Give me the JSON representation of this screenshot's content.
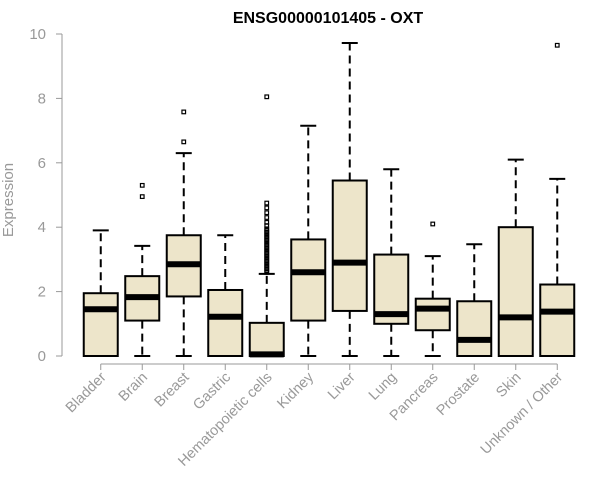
{
  "chart_data": {
    "type": "box",
    "title": "ENSG00000101405 - OXT",
    "xlabel": "",
    "ylabel": "Expression",
    "ylim": [
      0,
      10
    ],
    "yticks": [
      0,
      2,
      4,
      6,
      8,
      10
    ],
    "grid": false,
    "colors": {
      "box_fill": "#ede5ca",
      "stroke": "#000000",
      "axis": "#999999"
    },
    "categories": [
      "Bladder",
      "Brain",
      "Breast",
      "Gastric",
      "Hematopoietic cells",
      "Kidney",
      "Liver",
      "Lung",
      "Pancreas",
      "Prostate",
      "Skin",
      "Unknown / Other"
    ],
    "boxes": [
      {
        "name": "Bladder",
        "min": 0,
        "q1": 0,
        "median": 1.45,
        "q3": 1.95,
        "max": 3.9,
        "outliers": []
      },
      {
        "name": "Brain",
        "min": 0,
        "q1": 1.1,
        "median": 1.83,
        "q3": 2.48,
        "max": 3.42,
        "outliers": [
          4.95,
          5.3
        ]
      },
      {
        "name": "Breast",
        "min": 0,
        "q1": 1.85,
        "median": 2.85,
        "q3": 3.75,
        "max": 6.3,
        "outliers": [
          6.65,
          7.58
        ]
      },
      {
        "name": "Gastric",
        "min": 0,
        "q1": 0,
        "median": 1.22,
        "q3": 2.05,
        "max": 3.75,
        "outliers": []
      },
      {
        "name": "Hematopoietic cells",
        "min": 0,
        "q1": 0,
        "median": 0.05,
        "q3": 1.03,
        "max": 2.55,
        "outliers": [
          2.6,
          2.65,
          2.7,
          2.75,
          2.8,
          2.85,
          2.9,
          2.95,
          3.0,
          3.05,
          3.1,
          3.15,
          3.2,
          3.25,
          3.3,
          3.35,
          3.4,
          3.45,
          3.5,
          3.55,
          3.6,
          3.65,
          3.7,
          3.75,
          3.8,
          3.85,
          3.9,
          3.95,
          4.05,
          4.15,
          4.3,
          4.45,
          4.6,
          4.75,
          8.05
        ]
      },
      {
        "name": "Kidney",
        "min": 0,
        "q1": 1.1,
        "median": 2.6,
        "q3": 3.62,
        "max": 7.15,
        "outliers": []
      },
      {
        "name": "Liver",
        "min": 0,
        "q1": 1.4,
        "median": 2.9,
        "q3": 5.45,
        "max": 9.72,
        "outliers": []
      },
      {
        "name": "Lung",
        "min": 0,
        "q1": 1.0,
        "median": 1.3,
        "q3": 3.15,
        "max": 5.8,
        "outliers": []
      },
      {
        "name": "Pancreas",
        "min": 0,
        "q1": 0.8,
        "median": 1.47,
        "q3": 1.78,
        "max": 3.1,
        "outliers": [
          4.1
        ]
      },
      {
        "name": "Prostate",
        "min": 0,
        "q1": 0,
        "median": 0.5,
        "q3": 1.7,
        "max": 3.47,
        "outliers": []
      },
      {
        "name": "Skin",
        "min": 0,
        "q1": 0,
        "median": 1.2,
        "q3": 4.0,
        "max": 6.1,
        "outliers": []
      },
      {
        "name": "Unknown / Other",
        "min": 0,
        "q1": 0,
        "median": 1.38,
        "q3": 2.22,
        "max": 5.5,
        "outliers": [
          9.65
        ]
      }
    ]
  }
}
